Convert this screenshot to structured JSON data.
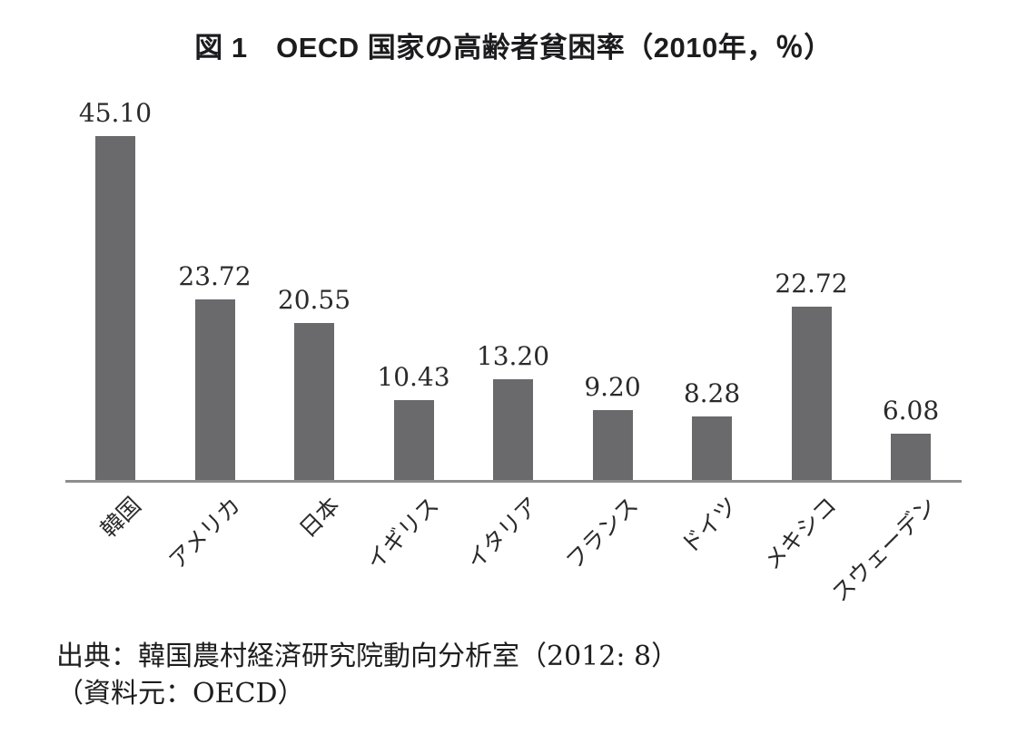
{
  "chart_data": {
    "type": "bar",
    "title": "図 1　OECD 国家の高齢者貧困率（2010年，％）",
    "categories": [
      "韓国",
      "アメリカ",
      "日本",
      "イギリス",
      "イタリア",
      "フランス",
      "ドイツ",
      "メキシコ",
      "スウェーデン"
    ],
    "values": [
      45.1,
      23.72,
      20.55,
      10.43,
      13.2,
      9.2,
      8.28,
      22.72,
      6.08
    ],
    "value_labels": [
      "45.10",
      "23.72",
      "20.55",
      "10.43",
      "13.20",
      "9.20",
      "8.28",
      "22.72",
      "6.08"
    ],
    "xlabel": "",
    "ylabel": "",
    "unit": "%",
    "year": "2010",
    "ylim": [
      0,
      48
    ],
    "grid": false,
    "legend_position": "none",
    "bar_color": "#6a6a6d",
    "axis_color": "#8d8d8d",
    "text_color": "#2a2a2a",
    "source_line1": "出典：韓国農村経済研究院動向分析室（2012: 8）",
    "source_line2": "（資料元：OECD）"
  }
}
